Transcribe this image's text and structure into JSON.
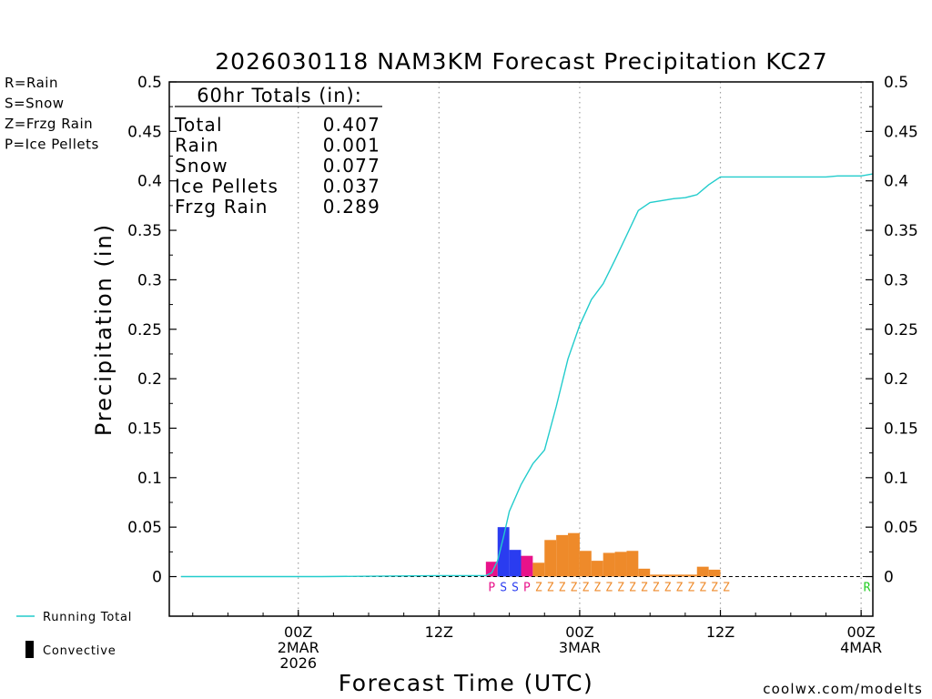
{
  "chart_data": {
    "type": "bar",
    "title": "2026030118 NAM3KM Forecast Precipitation KC27",
    "xlabel": "Forecast Time (UTC)",
    "ylabel": "Precipitation (in)",
    "ylim": [
      -0.04,
      0.5
    ],
    "yticks": [
      0,
      0.05,
      0.1,
      0.15,
      0.2,
      0.25,
      0.3,
      0.35,
      0.4,
      0.45,
      0.5
    ],
    "ytick_labels": [
      "0",
      "0.05",
      "0.1",
      "0.15",
      "0.2",
      "0.25",
      "0.3",
      "0.35",
      "0.4",
      "0.45",
      "0.5"
    ],
    "xlim_hours": [
      -6,
      54
    ],
    "xticks": [
      {
        "hour": 5,
        "lines": [
          "00Z",
          "2MAR",
          "2026"
        ]
      },
      {
        "hour": 17,
        "lines": [
          "12Z"
        ]
      },
      {
        "hour": 29,
        "lines": [
          "00Z",
          "3MAR"
        ]
      },
      {
        "hour": 41,
        "lines": [
          "12Z"
        ]
      },
      {
        "hour": 53,
        "lines": [
          "00Z",
          "4MAR"
        ]
      }
    ],
    "totals": {
      "heading": "60hr Totals (in):",
      "rows": [
        {
          "label": "Total",
          "value": "0.407"
        },
        {
          "label": "Rain",
          "value": "0.001"
        },
        {
          "label": "Snow",
          "value": "0.077"
        },
        {
          "label": "Ice Pellets",
          "value": "0.037"
        },
        {
          "label": "Frzg Rain",
          "value": "0.289"
        }
      ]
    },
    "type_legend": [
      {
        "text": "R=Rain",
        "color": "#22cc22"
      },
      {
        "text": "S=Snow",
        "color": "#2a3cf0"
      },
      {
        "text": "Z=Frzg Rain",
        "color": "#ee8a2a"
      },
      {
        "text": "P=Ice Pellets",
        "color": "#e8128a"
      }
    ],
    "series_legend": [
      {
        "text": "Running Total",
        "color": "#22cccc"
      },
      {
        "text": "Convective",
        "color": "#000000"
      }
    ],
    "colors": {
      "P": "#e8128a",
      "S": "#2a3cf0",
      "Z": "#ee8a2a",
      "R": "#22cc22",
      "running": "#22cccc"
    },
    "bars": [
      {
        "hour": 22,
        "value": 0.015,
        "ptype": "P"
      },
      {
        "hour": 23,
        "value": 0.05,
        "ptype": "S"
      },
      {
        "hour": 24,
        "value": 0.027,
        "ptype": "S"
      },
      {
        "hour": 25,
        "value": 0.021,
        "ptype": "P"
      },
      {
        "hour": 26,
        "value": 0.014,
        "ptype": "Z"
      },
      {
        "hour": 27,
        "value": 0.037,
        "ptype": "Z"
      },
      {
        "hour": 28,
        "value": 0.042,
        "ptype": "Z"
      },
      {
        "hour": 29,
        "value": 0.044,
        "ptype": "Z"
      },
      {
        "hour": 30,
        "value": 0.026,
        "ptype": "Z"
      },
      {
        "hour": 31,
        "value": 0.016,
        "ptype": "Z"
      },
      {
        "hour": 32,
        "value": 0.024,
        "ptype": "Z"
      },
      {
        "hour": 33,
        "value": 0.025,
        "ptype": "Z"
      },
      {
        "hour": 34,
        "value": 0.026,
        "ptype": "Z"
      },
      {
        "hour": 35,
        "value": 0.008,
        "ptype": "Z"
      },
      {
        "hour": 36,
        "value": 0.002,
        "ptype": "Z"
      },
      {
        "hour": 37,
        "value": 0.002,
        "ptype": "Z"
      },
      {
        "hour": 38,
        "value": 0.002,
        "ptype": "Z"
      },
      {
        "hour": 39,
        "value": 0.002,
        "ptype": "Z"
      },
      {
        "hour": 40,
        "value": 0.01,
        "ptype": "Z"
      },
      {
        "hour": 41,
        "value": 0.007,
        "ptype": "Z"
      },
      {
        "hour": 42,
        "value": 0.0,
        "ptype": "Z"
      },
      {
        "hour": 54,
        "value": 0.0,
        "ptype": "R"
      }
    ],
    "running_total": {
      "hours": [
        -5,
        7,
        17,
        21,
        21.5,
        22,
        22.5,
        23,
        24,
        25,
        26,
        27,
        28,
        29,
        30,
        31,
        32,
        33,
        34,
        35,
        36,
        37,
        38,
        39,
        40,
        41,
        42,
        43,
        44,
        45,
        46,
        47,
        48,
        49,
        50,
        51,
        52,
        53,
        54
      ],
      "values": [
        0.0,
        0.0,
        0.001,
        0.001,
        0.004,
        0.016,
        0.04,
        0.066,
        0.093,
        0.114,
        0.128,
        0.172,
        0.22,
        0.254,
        0.28,
        0.296,
        0.32,
        0.345,
        0.37,
        0.378,
        0.38,
        0.382,
        0.383,
        0.386,
        0.396,
        0.404,
        0.404,
        0.404,
        0.404,
        0.404,
        0.404,
        0.404,
        0.404,
        0.404,
        0.404,
        0.405,
        0.405,
        0.405,
        0.407
      ]
    }
  },
  "credit": "coolwx.com/modelts"
}
